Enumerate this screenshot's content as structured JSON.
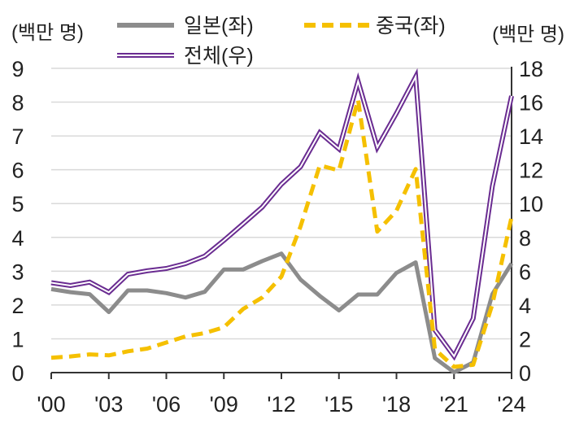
{
  "chart_data": {
    "type": "line",
    "title": "",
    "y_left_unit": "(백만 명)",
    "y_right_unit": "(백만 명)",
    "x_years": [
      2000,
      2001,
      2002,
      2003,
      2004,
      2005,
      2006,
      2007,
      2008,
      2009,
      2010,
      2011,
      2012,
      2013,
      2014,
      2015,
      2016,
      2017,
      2018,
      2019,
      2020,
      2021,
      2022,
      2023,
      2024
    ],
    "x_tick_labels": [
      "'00",
      "'03",
      "'06",
      "'09",
      "'12",
      "'15",
      "'18",
      "'21",
      "'24"
    ],
    "x_tick_years": [
      2000,
      2003,
      2006,
      2009,
      2012,
      2015,
      2018,
      2021,
      2024
    ],
    "y_left_range": [
      0,
      9
    ],
    "y_left_ticks": [
      "0",
      "1",
      "2",
      "3",
      "4",
      "5",
      "6",
      "7",
      "8",
      "9"
    ],
    "y_right_range": [
      0,
      18
    ],
    "y_right_ticks": [
      "0",
      "2",
      "4",
      "6",
      "8",
      "10",
      "12",
      "14",
      "16",
      "18"
    ],
    "grid": true,
    "series": [
      {
        "name": "일본(좌)",
        "axis": "left",
        "style": "solid-gray",
        "color": "#8c8c8c",
        "values": [
          2.47,
          2.38,
          2.32,
          1.79,
          2.43,
          2.43,
          2.35,
          2.22,
          2.39,
          3.05,
          3.05,
          3.3,
          3.52,
          2.75,
          2.27,
          1.84,
          2.31,
          2.31,
          2.95,
          3.26,
          0.43,
          0.01,
          0.3,
          2.32,
          3.23
        ]
      },
      {
        "name": "중국(좌)",
        "axis": "left",
        "style": "dashed-yellow",
        "color": "#f5c000",
        "values": [
          0.44,
          0.48,
          0.54,
          0.51,
          0.63,
          0.71,
          0.89,
          1.07,
          1.17,
          1.34,
          1.88,
          2.22,
          2.84,
          4.33,
          6.13,
          5.98,
          8.07,
          4.17,
          4.79,
          6.02,
          0.69,
          0.17,
          0.23,
          2.02,
          4.6
        ]
      },
      {
        "name": "전체(우)",
        "axis": "right",
        "style": "double-purple",
        "color": "#6a2c91",
        "values": [
          5.32,
          5.15,
          5.35,
          4.75,
          5.82,
          6.02,
          6.16,
          6.45,
          6.89,
          7.82,
          8.8,
          9.79,
          11.14,
          12.18,
          14.2,
          13.23,
          17.24,
          13.33,
          15.35,
          17.5,
          2.52,
          0.97,
          3.2,
          11.03,
          16.37
        ]
      }
    ],
    "legend": [
      {
        "label": "일본(좌)",
        "series": "일본(좌)"
      },
      {
        "label": "중국(좌)",
        "series": "중국(좌)"
      },
      {
        "label": "전체(우)",
        "series": "전체(우)"
      }
    ]
  }
}
